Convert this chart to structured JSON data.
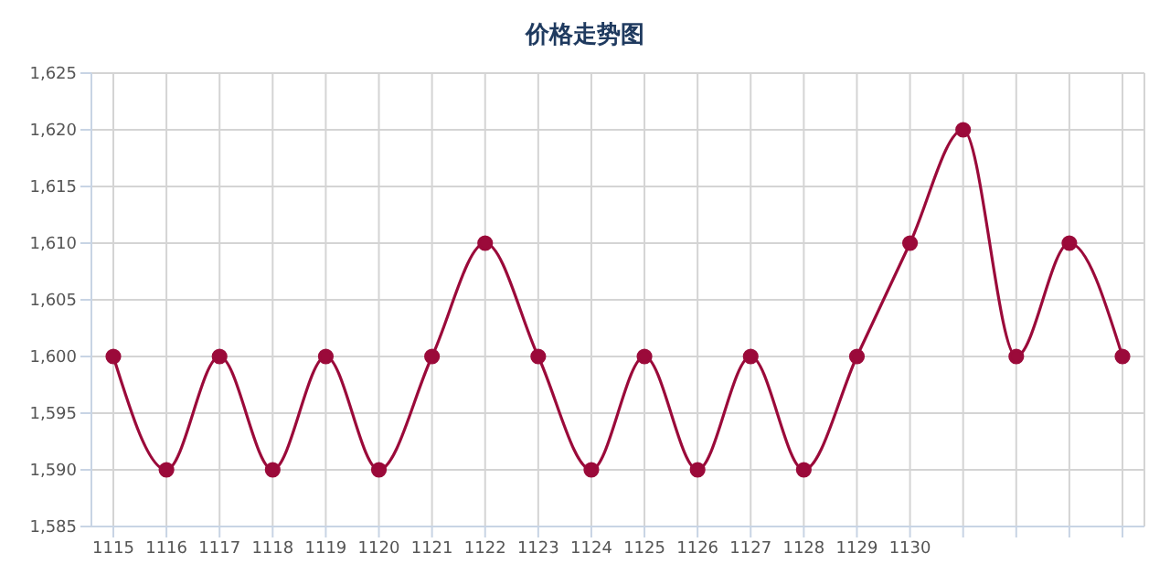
{
  "chart_data": {
    "type": "line",
    "title": "价格走势图",
    "categories": [
      "1115",
      "1116",
      "1117",
      "1118",
      "1119",
      "1120",
      "1121",
      "1122",
      "1123",
      "1124",
      "1125",
      "1126",
      "1127",
      "1128",
      "1129",
      "1130",
      null,
      null,
      null,
      null
    ],
    "series": [
      {
        "color": "#9b0a3a",
        "values": [
          1600,
          1590,
          1600,
          1590,
          1600,
          1590,
          1600,
          1610,
          1600,
          1590,
          1600,
          1590,
          1600,
          1590,
          1600,
          1610,
          1620,
          1600,
          1610,
          1600
        ]
      }
    ],
    "ylim": [
      1585,
      1625
    ],
    "yticks": [
      {
        "value": 1585,
        "label": "1,585"
      },
      {
        "value": 1590,
        "label": "1,590"
      },
      {
        "value": 1595,
        "label": "1,595"
      },
      {
        "value": 1600,
        "label": "1,600"
      },
      {
        "value": 1605,
        "label": "1,605"
      },
      {
        "value": 1610,
        "label": "1,610"
      },
      {
        "value": 1615,
        "label": "1,615"
      },
      {
        "value": 1620,
        "label": "1,620"
      },
      {
        "value": 1625,
        "label": "1,625"
      }
    ],
    "grid": true,
    "marker": "circle",
    "line_style": "solid",
    "legend": false
  }
}
